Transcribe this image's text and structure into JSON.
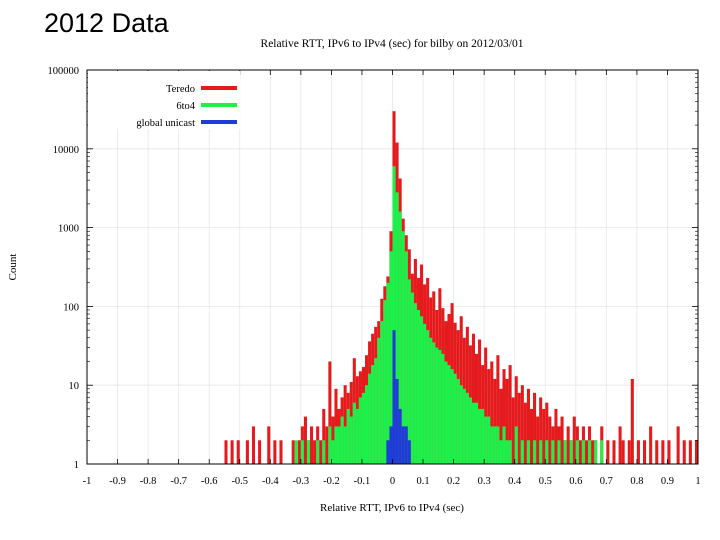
{
  "slide": {
    "title": "2012 Data"
  },
  "chart_data": {
    "type": "bar",
    "title": "Relative RTT, IPv6 to IPv4 (sec) for bilby on 2012/03/01",
    "xlabel": "Relative RTT, IPv6 to IPv4 (sec)",
    "ylabel": "Count",
    "xlim": [
      -1,
      1
    ],
    "ylim": [
      1,
      100000
    ],
    "yscale": "log",
    "xticks": [
      "-1",
      "-0.9",
      "-0.8",
      "-0.7",
      "-0.6",
      "-0.5",
      "-0.4",
      "-0.3",
      "-0.2",
      "-0.1",
      "0",
      "0.1",
      "0.2",
      "0.3",
      "0.4",
      "0.5",
      "0.6",
      "0.7",
      "0.8",
      "0.9",
      "1"
    ],
    "yticks": [
      "1",
      "10",
      "100",
      "1000",
      "10000",
      "100000"
    ],
    "legend_position": "top-left",
    "colors": {
      "Teredo": "#e41a1c",
      "6to4": "#1ef04a",
      "global unicast": "#1f3cd6"
    },
    "series": [
      {
        "name": "Teredo",
        "points": [
          [
            -0.55,
            2
          ],
          [
            -0.53,
            2
          ],
          [
            -0.51,
            2
          ],
          [
            -0.48,
            2
          ],
          [
            -0.46,
            3
          ],
          [
            -0.44,
            2
          ],
          [
            -0.41,
            3
          ],
          [
            -0.39,
            2
          ],
          [
            -0.37,
            2
          ],
          [
            -0.33,
            2
          ],
          [
            -0.31,
            2
          ],
          [
            -0.3,
            3
          ],
          [
            -0.29,
            4
          ],
          [
            -0.28,
            2
          ],
          [
            -0.27,
            3
          ],
          [
            -0.26,
            2
          ],
          [
            -0.25,
            3
          ],
          [
            -0.24,
            2
          ],
          [
            -0.23,
            5
          ],
          [
            -0.22,
            3
          ],
          [
            -0.21,
            20
          ],
          [
            -0.2,
            4
          ],
          [
            -0.19,
            9
          ],
          [
            -0.18,
            5
          ],
          [
            -0.17,
            7
          ],
          [
            -0.16,
            10
          ],
          [
            -0.15,
            8
          ],
          [
            -0.14,
            11
          ],
          [
            -0.13,
            22
          ],
          [
            -0.12,
            13
          ],
          [
            -0.11,
            15
          ],
          [
            -0.1,
            17
          ],
          [
            -0.09,
            24
          ],
          [
            -0.08,
            36
          ],
          [
            -0.07,
            45
          ],
          [
            -0.06,
            55
          ],
          [
            -0.05,
            65
          ],
          [
            -0.04,
            125
          ],
          [
            -0.03,
            180
          ],
          [
            -0.02,
            240
          ],
          [
            -0.01,
            900
          ],
          [
            0.0,
            30000
          ],
          [
            0.01,
            12000
          ],
          [
            0.02,
            4200
          ],
          [
            0.03,
            1300
          ],
          [
            0.04,
            800
          ],
          [
            0.05,
            530
          ],
          [
            0.06,
            260
          ],
          [
            0.07,
            400
          ],
          [
            0.08,
            230
          ],
          [
            0.09,
            340
          ],
          [
            0.1,
            190
          ],
          [
            0.11,
            230
          ],
          [
            0.12,
            130
          ],
          [
            0.13,
            155
          ],
          [
            0.14,
            90
          ],
          [
            0.15,
            170
          ],
          [
            0.16,
            95
          ],
          [
            0.17,
            65
          ],
          [
            0.18,
            80
          ],
          [
            0.19,
            110
          ],
          [
            0.2,
            62
          ],
          [
            0.21,
            50
          ],
          [
            0.22,
            75
          ],
          [
            0.23,
            40
          ],
          [
            0.24,
            55
          ],
          [
            0.25,
            32
          ],
          [
            0.26,
            45
          ],
          [
            0.27,
            25
          ],
          [
            0.28,
            38
          ],
          [
            0.29,
            18
          ],
          [
            0.3,
            30
          ],
          [
            0.31,
            16
          ],
          [
            0.32,
            20
          ],
          [
            0.33,
            12
          ],
          [
            0.34,
            24
          ],
          [
            0.35,
            9
          ],
          [
            0.36,
            16
          ],
          [
            0.37,
            12
          ],
          [
            0.38,
            18
          ],
          [
            0.39,
            7
          ],
          [
            0.4,
            13
          ],
          [
            0.41,
            8
          ],
          [
            0.42,
            10
          ],
          [
            0.43,
            6
          ],
          [
            0.44,
            9
          ],
          [
            0.45,
            5
          ],
          [
            0.46,
            8
          ],
          [
            0.47,
            4
          ],
          [
            0.48,
            7
          ],
          [
            0.49,
            5
          ],
          [
            0.5,
            6
          ],
          [
            0.51,
            4
          ],
          [
            0.52,
            3
          ],
          [
            0.53,
            5
          ],
          [
            0.54,
            3
          ],
          [
            0.55,
            4
          ],
          [
            0.56,
            2
          ],
          [
            0.57,
            3
          ],
          [
            0.58,
            2
          ],
          [
            0.59,
            4
          ],
          [
            0.6,
            3
          ],
          [
            0.61,
            2
          ],
          [
            0.62,
            3
          ],
          [
            0.63,
            2
          ],
          [
            0.64,
            3
          ],
          [
            0.65,
            2
          ],
          [
            0.66,
            2
          ],
          [
            0.68,
            3
          ],
          [
            0.7,
            2
          ],
          [
            0.72,
            2
          ],
          [
            0.74,
            3
          ],
          [
            0.75,
            2
          ],
          [
            0.77,
            2
          ],
          [
            0.78,
            12
          ],
          [
            0.8,
            2
          ],
          [
            0.82,
            2
          ],
          [
            0.84,
            3
          ],
          [
            0.86,
            2
          ],
          [
            0.88,
            2
          ],
          [
            0.9,
            2
          ],
          [
            0.93,
            3
          ],
          [
            0.95,
            2
          ],
          [
            0.97,
            2
          ],
          [
            0.99,
            2
          ]
        ]
      },
      {
        "name": "6to4",
        "points": [
          [
            -0.32,
            2
          ],
          [
            -0.3,
            2
          ],
          [
            -0.28,
            2
          ],
          [
            -0.25,
            2
          ],
          [
            -0.23,
            2
          ],
          [
            -0.21,
            3
          ],
          [
            -0.2,
            2
          ],
          [
            -0.19,
            3
          ],
          [
            -0.18,
            3
          ],
          [
            -0.17,
            4
          ],
          [
            -0.16,
            3
          ],
          [
            -0.15,
            5
          ],
          [
            -0.14,
            4
          ],
          [
            -0.13,
            6
          ],
          [
            -0.12,
            5
          ],
          [
            -0.11,
            7
          ],
          [
            -0.1,
            8
          ],
          [
            -0.09,
            10
          ],
          [
            -0.08,
            14
          ],
          [
            -0.07,
            18
          ],
          [
            -0.06,
            22
          ],
          [
            -0.05,
            40
          ],
          [
            -0.04,
            65
          ],
          [
            -0.03,
            120
          ],
          [
            -0.02,
            200
          ],
          [
            -0.01,
            500
          ],
          [
            0.0,
            6000
          ],
          [
            0.01,
            2800
          ],
          [
            0.02,
            1600
          ],
          [
            0.03,
            900
          ],
          [
            0.04,
            500
          ],
          [
            0.05,
            220
          ],
          [
            0.06,
            150
          ],
          [
            0.07,
            110
          ],
          [
            0.08,
            90
          ],
          [
            0.09,
            75
          ],
          [
            0.1,
            60
          ],
          [
            0.11,
            50
          ],
          [
            0.12,
            40
          ],
          [
            0.13,
            35
          ],
          [
            0.14,
            30
          ],
          [
            0.15,
            28
          ],
          [
            0.16,
            25
          ],
          [
            0.17,
            20
          ],
          [
            0.18,
            18
          ],
          [
            0.19,
            16
          ],
          [
            0.2,
            14
          ],
          [
            0.21,
            12
          ],
          [
            0.22,
            10
          ],
          [
            0.23,
            9
          ],
          [
            0.24,
            8
          ],
          [
            0.25,
            7
          ],
          [
            0.26,
            6
          ],
          [
            0.27,
            6
          ],
          [
            0.28,
            5
          ],
          [
            0.29,
            5
          ],
          [
            0.3,
            4
          ],
          [
            0.31,
            4
          ],
          [
            0.32,
            3
          ],
          [
            0.33,
            3
          ],
          [
            0.34,
            3
          ],
          [
            0.35,
            2
          ],
          [
            0.36,
            3
          ],
          [
            0.37,
            2
          ],
          [
            0.38,
            2
          ],
          [
            0.4,
            3
          ],
          [
            0.42,
            2
          ],
          [
            0.44,
            2
          ],
          [
            0.46,
            2
          ],
          [
            0.48,
            2
          ],
          [
            0.5,
            2
          ],
          [
            0.52,
            2
          ],
          [
            0.54,
            2
          ],
          [
            0.56,
            2
          ],
          [
            0.58,
            2
          ],
          [
            0.6,
            2
          ],
          [
            0.62,
            2
          ],
          [
            0.64,
            2
          ],
          [
            0.66,
            2
          ],
          [
            0.68,
            2
          ]
        ]
      },
      {
        "name": "global unicast",
        "points": [
          [
            -0.02,
            2
          ],
          [
            -0.01,
            3
          ],
          [
            0.0,
            50
          ],
          [
            0.01,
            12
          ],
          [
            0.02,
            5
          ],
          [
            0.03,
            3
          ],
          [
            0.04,
            3
          ],
          [
            0.05,
            2
          ]
        ]
      }
    ]
  }
}
